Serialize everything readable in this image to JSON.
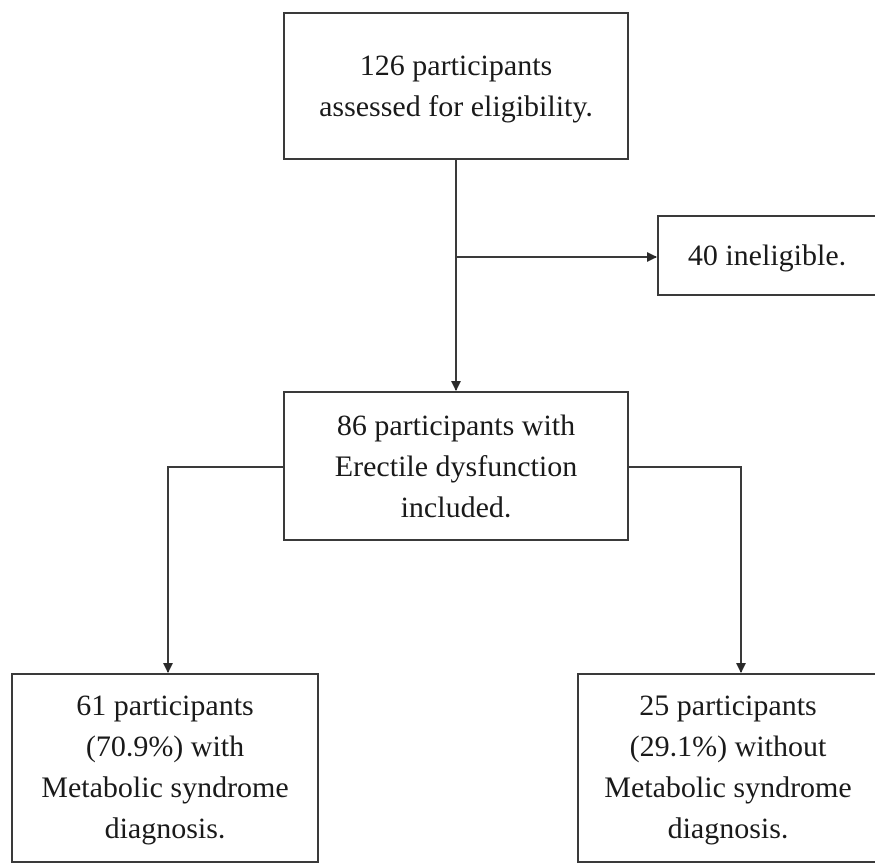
{
  "flowchart": {
    "assessed": {
      "lines": [
        "126 participants",
        "assessed for eligibility."
      ]
    },
    "ineligible": {
      "lines": [
        "40 ineligible."
      ]
    },
    "included": {
      "lines": [
        "86 participants with",
        "Erectile dysfunction",
        "included."
      ]
    },
    "with_mets": {
      "lines": [
        "61 participants",
        "(70.9%) with",
        "Metabolic syndrome",
        "diagnosis."
      ]
    },
    "without_mets": {
      "lines": [
        "25 participants",
        "(29.1%) without",
        "Metabolic syndrome",
        "diagnosis."
      ]
    }
  },
  "colors": {
    "line": "#3a3a3a",
    "text": "#1a1a1a",
    "background": "#ffffff"
  }
}
